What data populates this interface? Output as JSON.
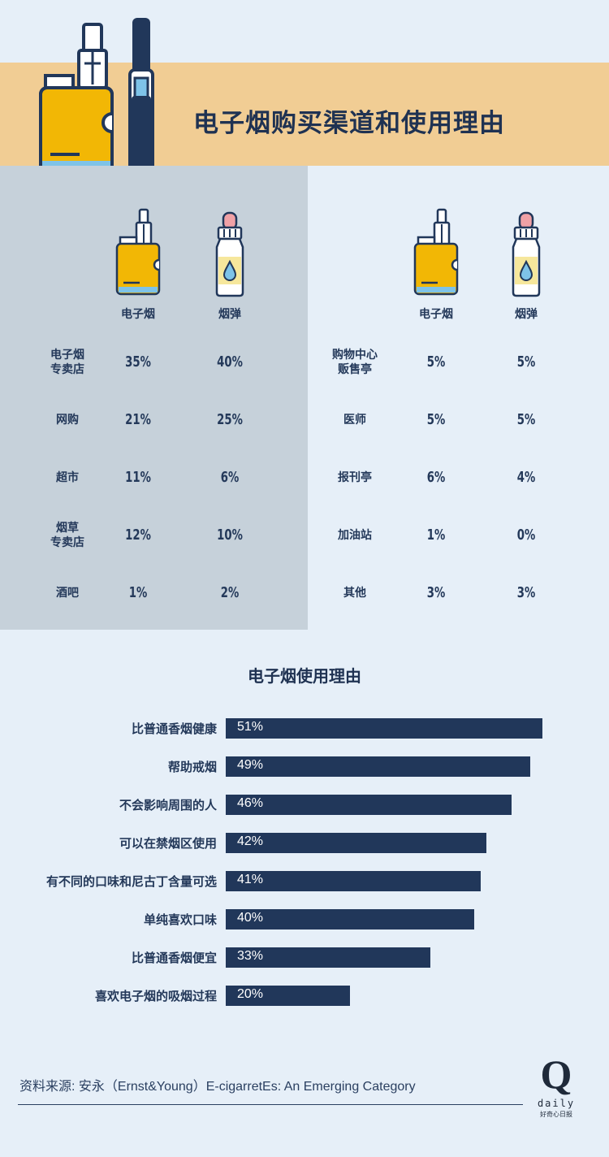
{
  "title": "电子烟购买渠道和使用理由",
  "colors": {
    "band": "#f1cd94",
    "background": "#e6eff8",
    "panel": "#c6d1da",
    "navy": "#21375a",
    "battery": "#f2b705"
  },
  "columns": {
    "ecig": "电子烟",
    "cartridge": "烟弹"
  },
  "icons": {
    "ecig": "vape-device-icon",
    "cartridge": "e-liquid-bottle-icon"
  },
  "channels_left": [
    {
      "label": "电子烟\n专卖店",
      "ecig": "35%",
      "cartridge": "40%"
    },
    {
      "label": "网购",
      "ecig": "21%",
      "cartridge": "25%"
    },
    {
      "label": "超市",
      "ecig": "11%",
      "cartridge": "6%"
    },
    {
      "label": "烟草\n专卖店",
      "ecig": "12%",
      "cartridge": "10%"
    },
    {
      "label": "酒吧",
      "ecig": "1%",
      "cartridge": "2%"
    }
  ],
  "channels_right": [
    {
      "label": "购物中心\n贩售亭",
      "ecig": "5%",
      "cartridge": "5%"
    },
    {
      "label": "医师",
      "ecig": "5%",
      "cartridge": "5%"
    },
    {
      "label": "报刊亭",
      "ecig": "6%",
      "cartridge": "4%"
    },
    {
      "label": "加油站",
      "ecig": "1%",
      "cartridge": "0%"
    },
    {
      "label": "其他",
      "ecig": "3%",
      "cartridge": "3%"
    }
  ],
  "chart_data": {
    "type": "bar",
    "title": "电子烟使用理由",
    "categories": [
      "比普通香烟健康",
      "帮助戒烟",
      "不会影响周围的人",
      "可以在禁烟区使用",
      "有不同的口味和尼古丁含量可选",
      "单纯喜欢口味",
      "比普通香烟便宜",
      "喜欢电子烟的吸烟过程"
    ],
    "values": [
      51,
      49,
      46,
      42,
      41,
      40,
      33,
      20
    ],
    "value_labels": [
      "51%",
      "49%",
      "46%",
      "42%",
      "41%",
      "40%",
      "33%",
      "20%"
    ],
    "unit": "%",
    "orientation": "horizontal"
  },
  "source": "资料来源: 安永（Ernst&Young）E-cigarretEs:  An Emerging Category",
  "logo": {
    "mark": "Q",
    "word": "daily",
    "sub": "好奇心日报"
  }
}
